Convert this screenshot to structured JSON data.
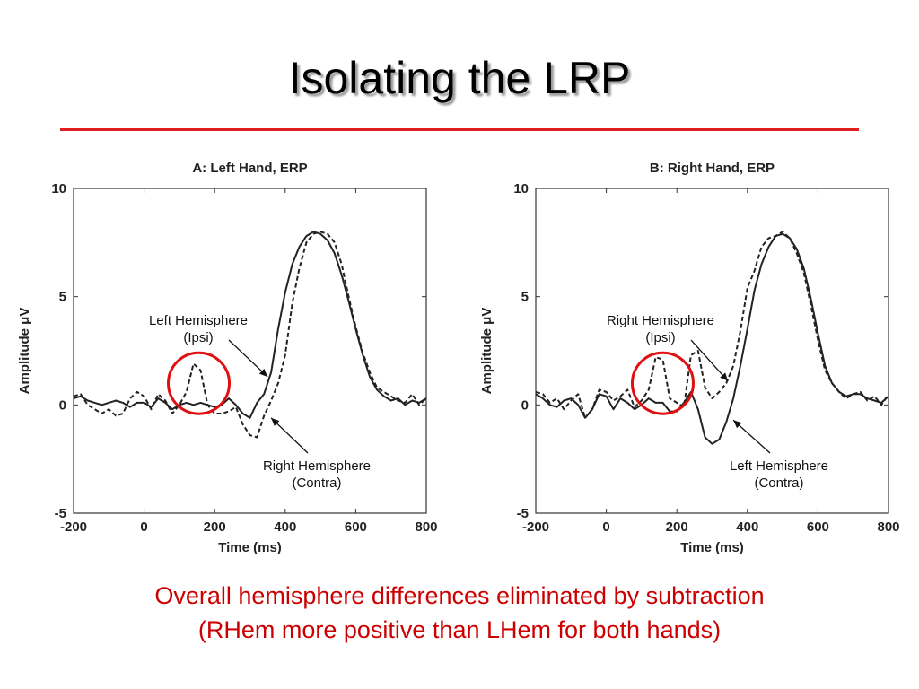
{
  "slide": {
    "title": "Isolating the LRP",
    "caption_line1": "Overall hemisphere differences eliminated by subtraction",
    "caption_line2": "(RHem more positive than LHem for both hands)",
    "colors": {
      "rule": "#e02020",
      "caption": "#cc0000",
      "highlight_circle": "#e01010",
      "trace": "#222222"
    }
  },
  "chart_data": [
    {
      "type": "line",
      "title": "A: Left Hand, ERP",
      "xlabel": "Time (ms)",
      "ylabel": "Amplitude μV",
      "xlim": [
        -200,
        800
      ],
      "ylim": [
        -5,
        10
      ],
      "xticks": [
        -200,
        0,
        200,
        400,
        600,
        800
      ],
      "yticks": [
        -5,
        0,
        5,
        10
      ],
      "grid": false,
      "series": [
        {
          "style": "solid",
          "x": [
            -200,
            -180,
            -160,
            -140,
            -120,
            -100,
            -80,
            -60,
            -40,
            -20,
            0,
            20,
            40,
            60,
            80,
            100,
            120,
            140,
            160,
            180,
            200,
            220,
            240,
            260,
            280,
            300,
            320,
            340,
            360,
            380,
            400,
            420,
            440,
            460,
            480,
            500,
            520,
            540,
            560,
            580,
            600,
            620,
            640,
            660,
            680,
            700,
            720,
            740,
            760,
            780,
            800
          ],
          "y": [
            0.3,
            0.4,
            0.2,
            0.1,
            0.0,
            0.1,
            0.2,
            0.1,
            -0.1,
            0.1,
            0.1,
            -0.1,
            0.3,
            0.1,
            -0.2,
            0.0,
            0.1,
            0.0,
            0.1,
            0.0,
            -0.1,
            0.0,
            0.3,
            0.0,
            -0.4,
            -0.6,
            0.1,
            0.5,
            1.5,
            3.5,
            5.2,
            6.5,
            7.3,
            7.8,
            8.0,
            7.9,
            7.6,
            7.0,
            6.0,
            4.8,
            3.5,
            2.3,
            1.3,
            0.7,
            0.4,
            0.2,
            0.3,
            0.0,
            0.2,
            0.1,
            0.3
          ]
        },
        {
          "style": "dashed",
          "x": [
            -200,
            -180,
            -160,
            -140,
            -120,
            -100,
            -80,
            -60,
            -40,
            -20,
            0,
            20,
            40,
            60,
            80,
            100,
            120,
            140,
            160,
            180,
            200,
            220,
            240,
            260,
            280,
            300,
            320,
            340,
            360,
            380,
            400,
            420,
            440,
            460,
            480,
            500,
            520,
            540,
            560,
            580,
            600,
            620,
            640,
            660,
            680,
            700,
            720,
            740,
            760,
            780,
            800
          ],
          "y": [
            0.4,
            0.5,
            0.0,
            -0.2,
            -0.4,
            -0.2,
            -0.5,
            -0.4,
            0.3,
            0.6,
            0.4,
            -0.2,
            0.5,
            0.2,
            -0.4,
            0.0,
            0.6,
            1.9,
            1.6,
            0.0,
            -0.4,
            -0.4,
            -0.3,
            -0.1,
            -0.9,
            -1.4,
            -1.5,
            -0.5,
            0.2,
            1.0,
            2.3,
            4.7,
            6.3,
            7.5,
            7.9,
            8.0,
            7.9,
            7.5,
            6.5,
            5.0,
            3.6,
            2.4,
            1.5,
            0.8,
            0.6,
            0.4,
            0.2,
            0.1,
            0.5,
            0.0,
            0.3
          ]
        }
      ],
      "annotations": [
        {
          "line1": "Left Hemisphere",
          "line2": "(Ipsi)",
          "x": 350,
          "y": 1.3
        },
        {
          "line1": "Right Hemisphere",
          "line2": "(Contra)",
          "x": 360,
          "y": -0.6
        }
      ],
      "highlight_circle": {
        "x": 155,
        "y": 1.0
      }
    },
    {
      "type": "line",
      "title": "B: Right Hand, ERP",
      "xlabel": "Time (ms)",
      "ylabel": "Amplitude μV",
      "xlim": [
        -200,
        800
      ],
      "ylim": [
        -5,
        10
      ],
      "xticks": [
        -200,
        0,
        200,
        400,
        600,
        800
      ],
      "yticks": [
        -5,
        0,
        5,
        10
      ],
      "grid": false,
      "series": [
        {
          "style": "solid",
          "x": [
            -200,
            -180,
            -160,
            -140,
            -120,
            -100,
            -80,
            -60,
            -40,
            -20,
            0,
            20,
            40,
            60,
            80,
            100,
            120,
            140,
            160,
            180,
            200,
            220,
            240,
            260,
            280,
            300,
            320,
            340,
            360,
            380,
            400,
            420,
            440,
            460,
            480,
            500,
            520,
            540,
            560,
            580,
            600,
            620,
            640,
            660,
            680,
            700,
            720,
            740,
            760,
            780,
            800
          ],
          "y": [
            0.5,
            0.3,
            0.0,
            -0.1,
            0.2,
            0.3,
            0.0,
            -0.6,
            -0.2,
            0.5,
            0.4,
            -0.2,
            0.3,
            0.1,
            -0.2,
            0.0,
            0.3,
            0.1,
            0.1,
            -0.3,
            -0.3,
            0.1,
            0.6,
            -0.2,
            -1.5,
            -1.8,
            -1.6,
            -0.8,
            0.3,
            1.8,
            3.5,
            5.3,
            6.5,
            7.3,
            7.8,
            7.9,
            7.7,
            7.2,
            6.3,
            4.9,
            3.3,
            1.8,
            1.0,
            0.6,
            0.4,
            0.5,
            0.5,
            0.3,
            0.2,
            0.1,
            0.4
          ]
        },
        {
          "style": "dashed",
          "x": [
            -200,
            -180,
            -160,
            -140,
            -120,
            -100,
            -80,
            -60,
            -40,
            -20,
            0,
            20,
            40,
            60,
            80,
            100,
            120,
            140,
            160,
            180,
            200,
            220,
            240,
            260,
            280,
            300,
            320,
            340,
            360,
            380,
            400,
            420,
            440,
            460,
            480,
            500,
            520,
            540,
            560,
            580,
            600,
            620,
            640,
            660,
            680,
            700,
            720,
            740,
            760,
            780,
            800
          ],
          "y": [
            0.6,
            0.5,
            0.1,
            0.3,
            -0.2,
            0.2,
            0.5,
            -0.6,
            -0.2,
            0.7,
            0.6,
            0.2,
            0.4,
            0.7,
            -0.1,
            0.2,
            0.7,
            2.2,
            2.1,
            0.3,
            0.1,
            -0.1,
            2.3,
            2.5,
            0.8,
            0.3,
            0.6,
            1.0,
            1.8,
            3.4,
            5.4,
            6.2,
            7.3,
            7.7,
            7.8,
            8.0,
            7.7,
            7.0,
            6.1,
            4.6,
            3.0,
            1.6,
            1.0,
            0.6,
            0.3,
            0.5,
            0.6,
            0.2,
            0.4,
            0.0,
            0.5
          ]
        }
      ],
      "annotations": [
        {
          "line1": "Right Hemisphere",
          "line2": "(Ipsi)",
          "x": 345,
          "y": 1.1
        },
        {
          "line1": "Left Hemisphere",
          "line2": "(Contra)",
          "x": 360,
          "y": -0.7
        }
      ],
      "highlight_circle": {
        "x": 160,
        "y": 1.0
      }
    }
  ]
}
